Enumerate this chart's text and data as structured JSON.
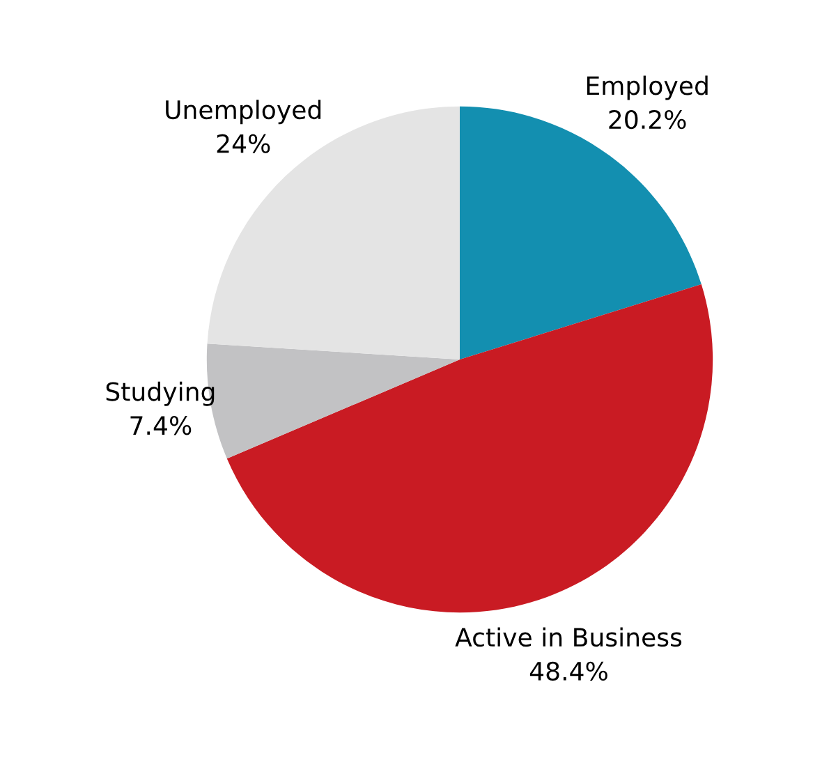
{
  "chart_data": {
    "type": "pie",
    "categories": [
      "Employed",
      "Active in Business",
      "Studying",
      "Unemployed"
    ],
    "values": [
      20.2,
      48.4,
      7.4,
      24
    ],
    "value_labels": [
      "20.2%",
      "48.4%",
      "7.4%",
      "24%"
    ],
    "colors": [
      "#138fb0",
      "#c91b23",
      "#c2c2c4",
      "#e4e4e4"
    ]
  }
}
